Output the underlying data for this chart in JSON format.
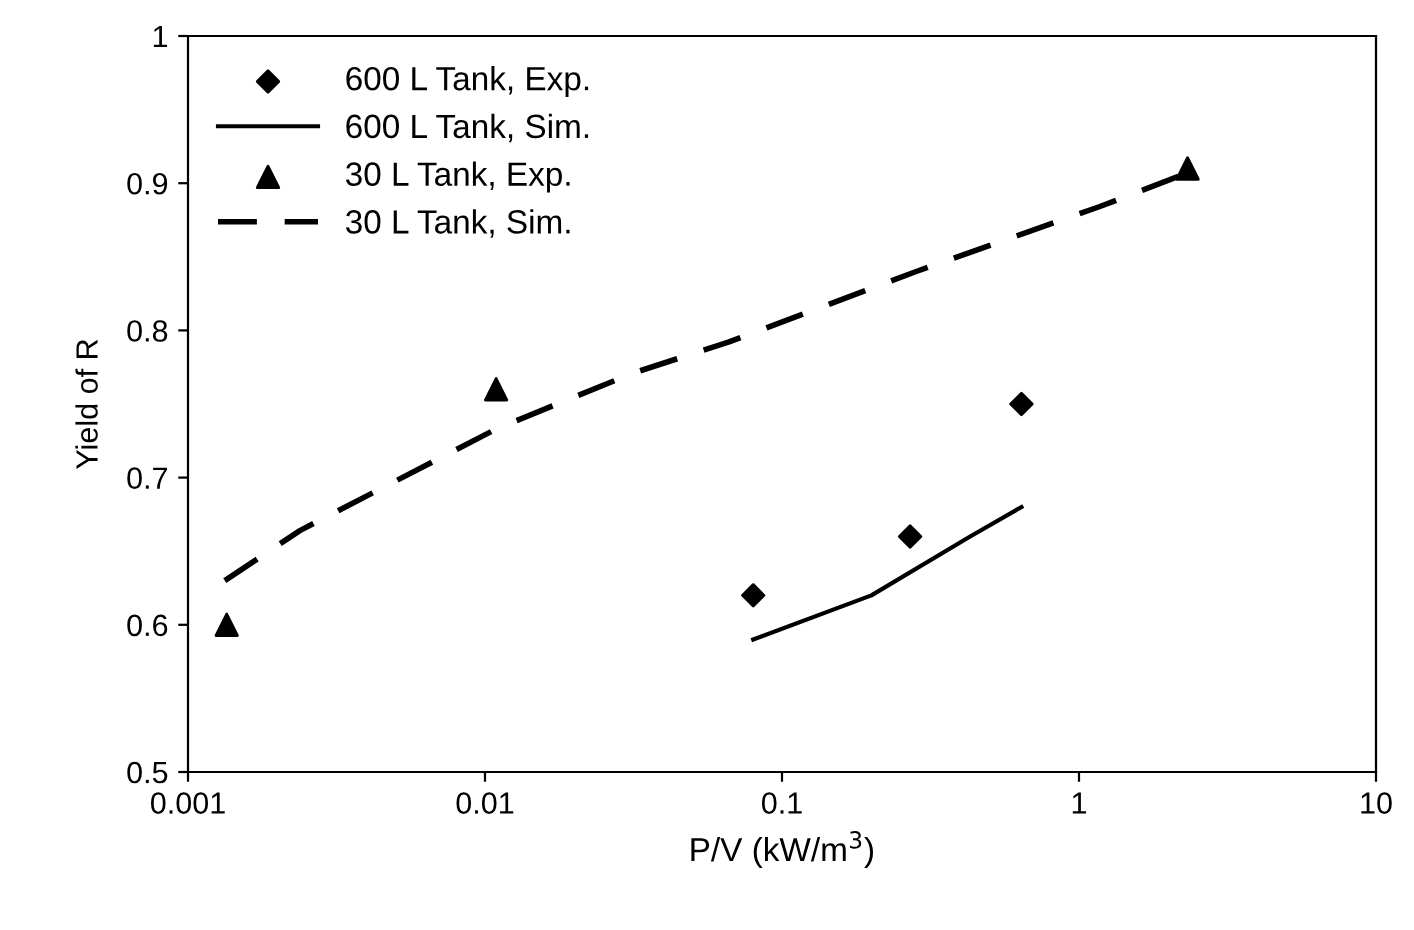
{
  "chart_data": {
    "type": "line",
    "xlabel": "P/V (kW/m$^{3}$)",
    "ylabel": "Yield of R",
    "log": "x",
    "xlim": [
      0.001,
      10
    ],
    "xticks": [
      0.001,
      0.01,
      0.1,
      1,
      10
    ],
    "ylim": [
      0.5,
      1
    ],
    "yticks": [
      0.5,
      0.6,
      0.7,
      0.8,
      0.9,
      1
    ],
    "grid": false,
    "legend": "top left",
    "series": [
      {
        "name": "600 L Tank, Exp.",
        "type": "scatter",
        "marker": "diamond",
        "color": "#000000",
        "x": [
          0.08,
          0.27,
          0.64
        ],
        "values": [
          0.62,
          0.66,
          0.75
        ]
      },
      {
        "name": "600 L Tank, Sim.",
        "line_style": "solid",
        "color": "#000000",
        "x": [
          0.08,
          0.2,
          0.43,
          0.64
        ],
        "values": [
          0.59,
          0.62,
          0.66,
          0.68
        ]
      },
      {
        "name": "30 L Tank, Exp.",
        "type": "scatter",
        "marker": "triangle",
        "color": "#000000",
        "x": [
          0.00135,
          0.0109,
          2.32
        ],
        "values": [
          0.6,
          0.76,
          0.91
        ]
      },
      {
        "name": "30 L Tank, Sim.",
        "line_style": "dashed",
        "color": "#000000",
        "x": [
          0.00133,
          0.00238,
          0.0109,
          0.0315,
          0.066,
          0.283,
          1.17,
          2.32
        ],
        "values": [
          0.63,
          0.664,
          0.733,
          0.771,
          0.792,
          0.84,
          0.884,
          0.907
        ]
      }
    ]
  }
}
